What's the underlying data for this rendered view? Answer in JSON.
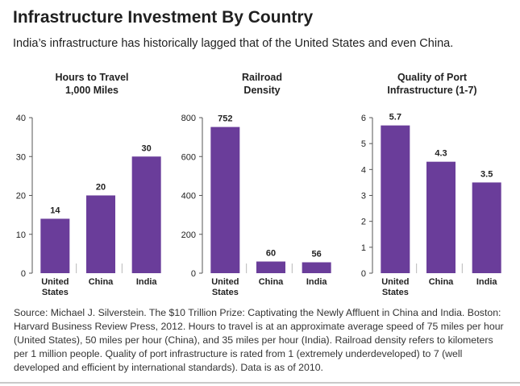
{
  "header": {
    "title": "Infrastructure Investment By Country",
    "subtitle": "India’s infrastructure has historically lagged that of the United States and even China."
  },
  "colors": {
    "bar": "#6a3d9a",
    "axis": "#555555",
    "text": "#222222"
  },
  "chart_data": [
    {
      "type": "bar",
      "title_lines": [
        "Hours to Travel",
        "1,000 Miles"
      ],
      "categories": [
        [
          "United",
          "States"
        ],
        [
          "China"
        ],
        [
          "India"
        ]
      ],
      "values": [
        14,
        20,
        30
      ],
      "value_labels": [
        "14",
        "20",
        "30"
      ],
      "ylim": [
        0,
        40
      ],
      "yticks": [
        0,
        10,
        20,
        30,
        40
      ],
      "ytick_labels": [
        "0",
        "10",
        "20",
        "30",
        "40"
      ]
    },
    {
      "type": "bar",
      "title_lines": [
        "Railroad",
        "Density"
      ],
      "categories": [
        [
          "United",
          "States"
        ],
        [
          "China"
        ],
        [
          "India"
        ]
      ],
      "values": [
        752,
        60,
        56
      ],
      "value_labels": [
        "752",
        "60",
        "56"
      ],
      "ylim": [
        0,
        800
      ],
      "yticks": [
        0,
        200,
        400,
        600,
        800
      ],
      "ytick_labels": [
        "0",
        "200",
        "400",
        "600",
        "800"
      ]
    },
    {
      "type": "bar",
      "title_lines": [
        "Quality of Port",
        "Infrastructure (1-7)"
      ],
      "categories": [
        [
          "United",
          "States"
        ],
        [
          "China"
        ],
        [
          "India"
        ]
      ],
      "values": [
        5.7,
        4.3,
        3.5
      ],
      "value_labels": [
        "5.7",
        "4.3",
        "3.5"
      ],
      "ylim": [
        0,
        6
      ],
      "yticks": [
        0,
        1,
        2,
        3,
        4,
        5,
        6
      ],
      "ytick_labels": [
        "0",
        "1",
        "2",
        "3",
        "4",
        "5",
        "6"
      ]
    }
  ],
  "source": "Source: Michael J. Silverstein. The $10 Trillion Prize: Captivating the Newly Affluent in China and India. Boston: Harvard Business Review Press, 2012. Hours to travel is at an approximate average speed of 75 miles per hour (United States), 50 miles per hour (China), and 35 miles per hour (India). Railroad density refers to kilometers per 1 million people. Quality of port infrastructure is rated from 1 (extremely underdeveloped) to 7 (well developed and efficient by international standards). Data is as of 2010."
}
